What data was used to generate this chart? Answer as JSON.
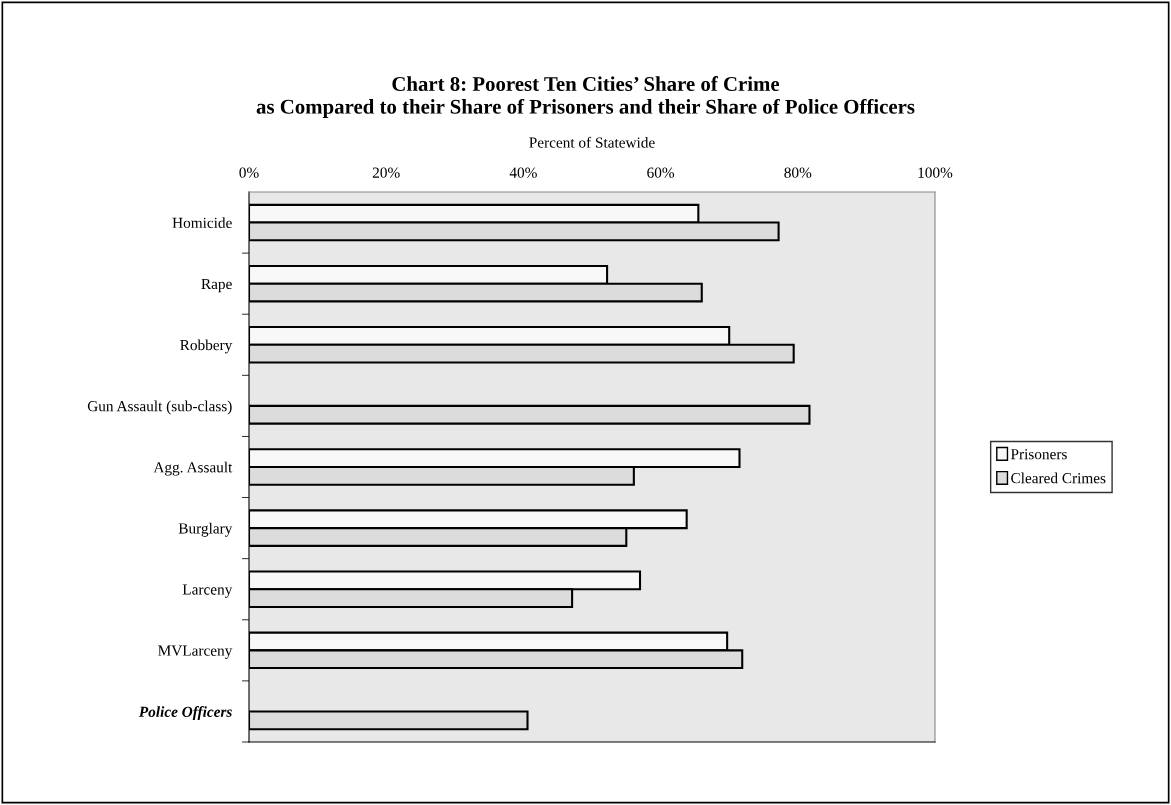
{
  "chart_data": {
    "type": "bar",
    "orientation": "horizontal",
    "title": "Chart 8: Poorest Ten Cities’ Share of Crime\nas Compared to their Share of Prisoners and their Share of Police Officers",
    "xlabel": "Percent of Statewide",
    "categories": [
      "Homicide",
      "Rape",
      "Robbery",
      "Gun Assault (sub-class)",
      "Agg. Assault",
      "Burglary",
      "Larceny",
      "MVLarceny",
      "Police Officers"
    ],
    "series": [
      {
        "name": "Prisoners",
        "color": "#f8f8f8",
        "values": [
          65.5,
          52.2,
          70.0,
          null,
          71.5,
          63.8,
          57.0,
          69.7,
          null
        ]
      },
      {
        "name": "Cleared Crimes",
        "color": "#dcdcdc",
        "values": [
          77.2,
          66.0,
          79.4,
          81.7,
          56.1,
          55.0,
          47.1,
          71.9,
          40.6
        ]
      }
    ],
    "xlim": [
      0,
      100
    ],
    "xticks": [
      {
        "value": 0,
        "label": "0%"
      },
      {
        "value": 20,
        "label": "20%"
      },
      {
        "value": 40,
        "label": "40%"
      },
      {
        "value": 60,
        "label": "60%"
      },
      {
        "value": 80,
        "label": "80%"
      },
      {
        "value": 100,
        "label": "100%"
      }
    ],
    "grid": false,
    "legend": "right"
  }
}
